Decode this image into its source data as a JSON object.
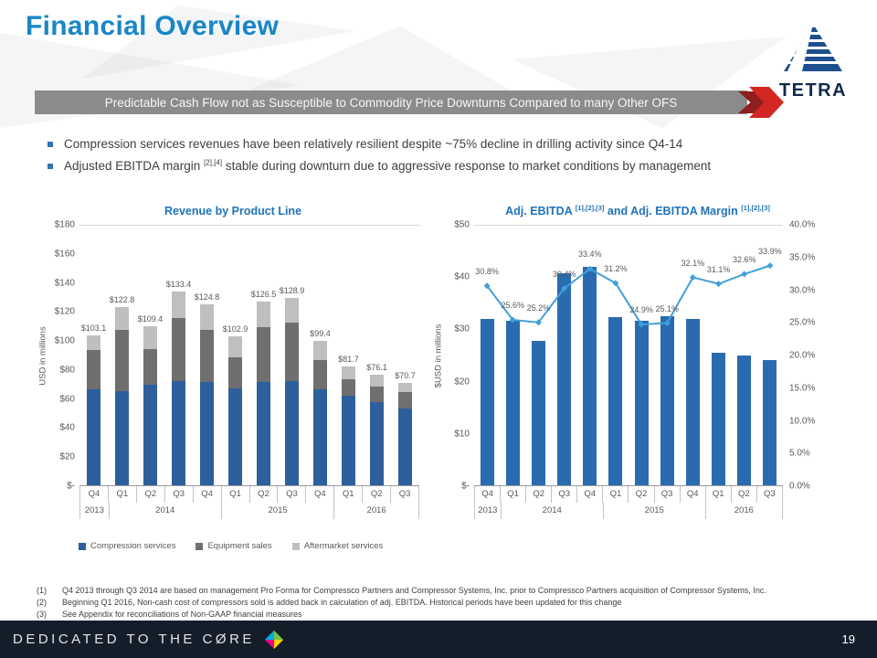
{
  "header": {
    "title": "Financial Overview",
    "logo_text": "TETRA"
  },
  "banner": {
    "text": "Predictable Cash Flow not as Susceptible to Commodity Price Downturns Compared to many Other OFS",
    "accent_red": "#d22723",
    "bar_gray": "#8b8b8b"
  },
  "bullets": [
    {
      "text": "Compression services revenues have been relatively resilient despite ~75% decline in drilling activity since Q4-14"
    },
    {
      "pre": "Adjusted EBITDA margin ",
      "sup": "[2],[4]",
      "post": " stable during downturn due to aggressive response to market conditions by management"
    }
  ],
  "chart_data": [
    {
      "type": "bar",
      "subtype": "stacked",
      "title": "Revenue by Product Line",
      "ylabel": "USD in millions",
      "ylim": [
        0,
        180
      ],
      "yticks": [
        "$180",
        "$160",
        "$140",
        "$120",
        "$100",
        "$80",
        "$60",
        "$40",
        "$20",
        "$-"
      ],
      "categories": [
        "Q4",
        "Q1",
        "Q2",
        "Q3",
        "Q4",
        "Q1",
        "Q2",
        "Q3",
        "Q4",
        "Q1",
        "Q2",
        "Q3"
      ],
      "years": [
        {
          "label": "2013",
          "span": 1
        },
        {
          "label": "2014",
          "span": 4
        },
        {
          "label": "2015",
          "span": 4
        },
        {
          "label": "2016",
          "span": 3
        }
      ],
      "series": [
        {
          "name": "Compression services",
          "color": "#2d5f9c",
          "values": [
            66,
            65,
            69,
            72,
            71,
            67,
            71,
            72,
            66,
            62,
            57,
            53
          ]
        },
        {
          "name": "Equipment sales",
          "color": "#6f6f6f",
          "values": [
            27,
            42,
            25,
            43,
            36,
            21,
            38,
            40,
            20,
            11,
            11,
            11
          ]
        },
        {
          "name": "Aftermarket services",
          "color": "#bfbfbf",
          "values": [
            10.1,
            15.8,
            15.4,
            18.4,
            17.8,
            14.9,
            17.5,
            16.9,
            13.4,
            8.7,
            8.1,
            6.7
          ]
        }
      ],
      "totals": [
        "$103.1",
        "$122.8",
        "$109.4",
        "$133.4",
        "$124.8",
        "$102.9",
        "$126.5",
        "$128.9",
        "$99.4",
        "$81.7",
        "$76.1",
        "$70.7"
      ],
      "legend_position": "bottom"
    },
    {
      "type": "bar+line",
      "title_parts": {
        "pre": "Adj. EBITDA ",
        "sup1": "[1],[2],[3]",
        "mid": " and Adj. EBITDA Margin ",
        "sup2": "[1],[2],[3]"
      },
      "ylabel_left": "$USD in millions",
      "ylim_left": [
        0,
        50
      ],
      "yticks_left": [
        "$50",
        "$40",
        "$30",
        "$20",
        "$10",
        "$-"
      ],
      "ylim_right": [
        0,
        40
      ],
      "yticks_right": [
        "40.0%",
        "35.0%",
        "30.0%",
        "25.0%",
        "20.0%",
        "15.0%",
        "10.0%",
        "5.0%",
        "0.0%"
      ],
      "categories": [
        "Q4",
        "Q1",
        "Q2",
        "Q3",
        "Q4",
        "Q1",
        "Q2",
        "Q3",
        "Q4",
        "Q1",
        "Q2",
        "Q3"
      ],
      "years": [
        {
          "label": "2013",
          "span": 1
        },
        {
          "label": "2014",
          "span": 4
        },
        {
          "label": "2015",
          "span": 4
        },
        {
          "label": "2016",
          "span": 3
        }
      ],
      "bars": {
        "name": "Adj. EBITDA",
        "color": "#2a6bb0",
        "values": [
          31.8,
          31.4,
          27.6,
          40.6,
          41.7,
          32.1,
          31.5,
          32.4,
          31.9,
          25.4,
          24.8,
          24.0
        ]
      },
      "line": {
        "name": "Adj. EBITDA Margin",
        "color": "#41a0d9",
        "values": [
          30.8,
          25.6,
          25.2,
          30.4,
          33.4,
          31.2,
          24.9,
          25.1,
          32.1,
          31.1,
          32.6,
          33.9
        ],
        "labels": [
          "30.8%",
          "25.6%",
          "25.2%",
          "30.4%",
          "33.4%",
          "31.2%",
          "24.9%",
          "25.1%",
          "32.1%",
          "31.1%",
          "32.6%",
          "33.9%"
        ]
      }
    }
  ],
  "footnotes": [
    {
      "num": "(1)",
      "text": "Q4 2013 through Q3 2014 are based on management Pro Forma for Compressco Partners and Compressor Systems, Inc. prior to Compressco Partners acquisition of Compressor Systems, Inc."
    },
    {
      "num": "(2)",
      "text": "Beginning Q1 2016, Non-cash cost of compressors sold is added back in calculation of adj. EBITDA. Historical periods have been updated for this change"
    },
    {
      "num": "(3)",
      "text": "See Appendix for reconciliations of Non-GAAP financial measures"
    }
  ],
  "footer": {
    "brand": "DEDICATED TO THE CØRE",
    "page": "19",
    "bg_color": "#141e2b"
  }
}
